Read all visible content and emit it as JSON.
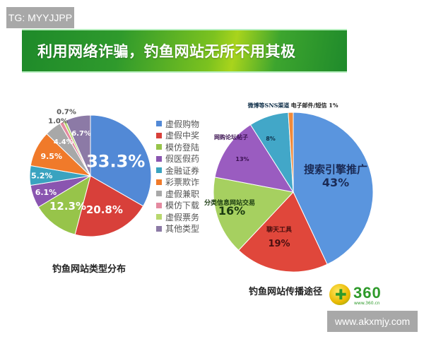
{
  "watermarks": {
    "top_left": "TG: MYYJJPP",
    "bottom_right": "www.akxmjy.com"
  },
  "slide_title": "利用网络诈骗，钓鱼网站无所不用其极",
  "logo": {
    "text": "360",
    "url": "www.360.cn"
  },
  "chart_data": [
    {
      "type": "pie",
      "title": "钓鱼网站类型分布",
      "legend_position": "right",
      "categories": [
        "虚假购物",
        "虚假中奖",
        "模仿登陆",
        "假医假药",
        "金融证券",
        "彩票欺诈",
        "虚假兼职",
        "模仿下载",
        "虚假票务",
        "其他类型"
      ],
      "values": [
        33.3,
        20.8,
        12.3,
        6.1,
        5.2,
        9.5,
        4.4,
        1.0,
        0.7,
        6.7
      ],
      "labels": [
        "33.3%",
        "20.8%",
        "12.3%",
        "6.1%",
        "5.2%",
        "9.5%",
        "4.4%",
        "1.0%",
        "0.7%",
        "6.7%"
      ],
      "colors": [
        "#5289d6",
        "#d8403a",
        "#97c44a",
        "#8a55b0",
        "#3aa3c0",
        "#f07a2a",
        "#a8a8a8",
        "#e48aa0",
        "#b8d86e",
        "#8c7aa6"
      ]
    },
    {
      "type": "pie",
      "title": "钓鱼网站传播途径",
      "legend_position": "none",
      "categories": [
        "搜索引擎推广",
        "聊天工具",
        "分类信息网站交易",
        "网购论坛帖子",
        "微博等SNS渠道",
        "电子邮件/短信"
      ],
      "values": [
        43,
        19,
        16,
        13,
        8,
        1
      ],
      "labels": [
        "43%",
        "19%",
        "16%",
        "13%",
        "8%",
        "1%"
      ],
      "colors": [
        "#5a95de",
        "#e0473b",
        "#a6d060",
        "#9a5cc0",
        "#42a7c8",
        "#f08a3a"
      ]
    }
  ]
}
